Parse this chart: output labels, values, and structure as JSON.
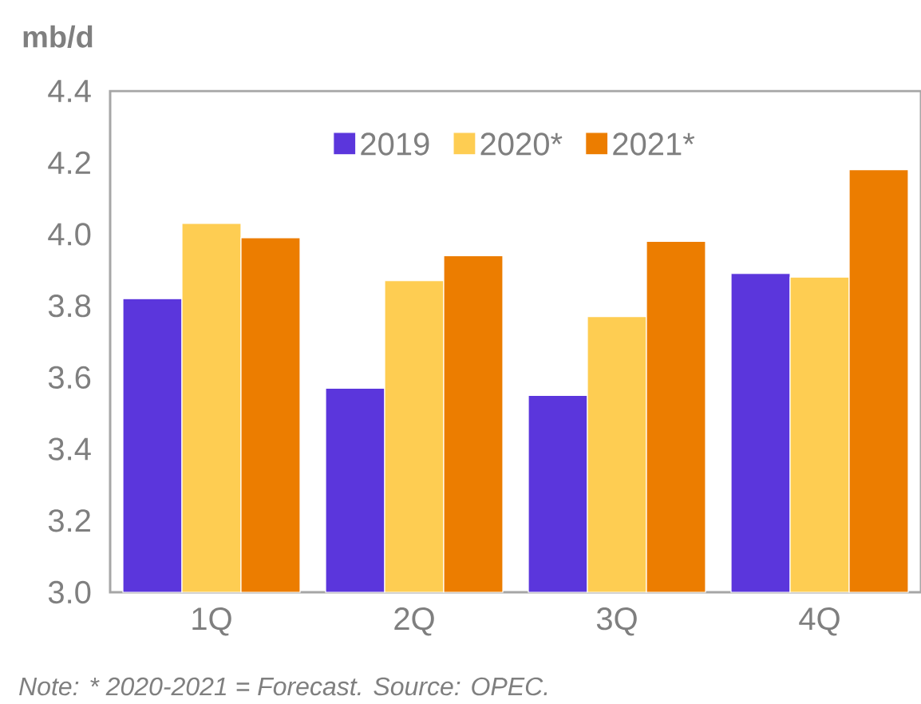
{
  "chart_data": {
    "type": "bar",
    "ylabel": "mb/d",
    "categories": [
      "1Q",
      "2Q",
      "3Q",
      "4Q"
    ],
    "series": [
      {
        "name": "2019",
        "color": "#5b36dc",
        "values": [
          3.82,
          3.57,
          3.55,
          3.89
        ]
      },
      {
        "name": "2020*",
        "color": "#fecd52",
        "values": [
          4.03,
          3.87,
          3.77,
          3.88
        ]
      },
      {
        "name": "2021*",
        "color": "#ec7d00",
        "values": [
          3.99,
          3.94,
          3.98,
          4.18
        ]
      }
    ],
    "ylim": [
      3.0,
      4.4
    ],
    "yticks": [
      {
        "value": 3.0,
        "label": "3.0"
      },
      3.2,
      3.4,
      3.6,
      3.8,
      {
        "value": 4.0,
        "label": "4.0"
      },
      4.2,
      4.4
    ],
    "grid": false,
    "legend": "top",
    "annotations": [
      "Note: * 2020-2021 = Forecast. Source: OPEC."
    ]
  }
}
